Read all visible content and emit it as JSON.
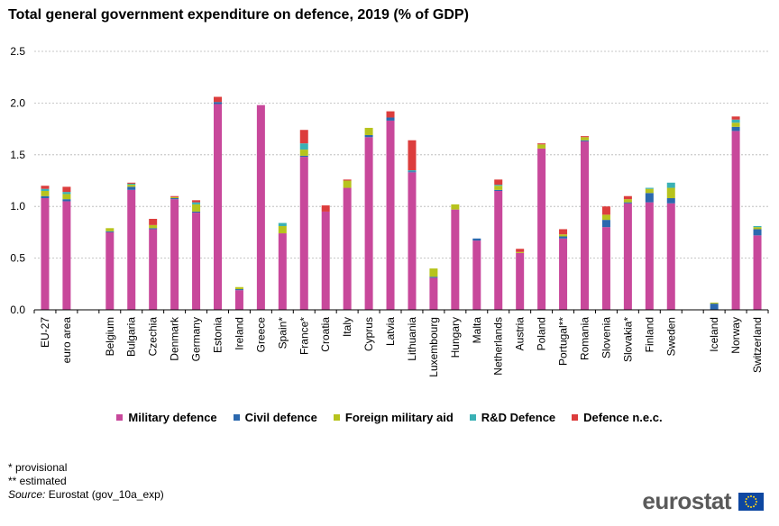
{
  "title": "Total general government expenditure on defence, 2019 (% of GDP)",
  "notes": {
    "provisional": "* provisional",
    "estimated": "** estimated",
    "source_label": "Source:",
    "source_text": "Eurostat (gov_10a_exp)"
  },
  "logo_text": "eurostat",
  "colors": {
    "military": "#c8489b",
    "civil": "#2b68ae",
    "foreign": "#b7c31d",
    "rnd": "#3ab1b5",
    "nec": "#dc3d3d",
    "grid": "#b5b5b5"
  },
  "chart_data": {
    "type": "bar",
    "stacked": true,
    "ylim": [
      0,
      2.5
    ],
    "yticks": [
      "0.0",
      "0.5",
      "1.0",
      "1.5",
      "2.0",
      "2.5"
    ],
    "grid": true,
    "legend_position": "bottom",
    "categories": [
      "EU-27",
      "euro area",
      "",
      "Belgium",
      "Bulgaria",
      "Czechia",
      "Denmark",
      "Germany",
      "Estonia",
      "Ireland",
      "Greece",
      "Spain*",
      "France*",
      "Croatia",
      "Italy",
      "Cyprus",
      "Latvia",
      "Lithuania",
      "Luxembourg",
      "Hungary",
      "Malta",
      "Netherlands",
      "Austria",
      "Poland",
      "Portugal**",
      "Romania",
      "Slovenia",
      "Slovakia*",
      "Finland",
      "Sweden",
      "",
      "Iceland",
      "Norway",
      "Switzerland"
    ],
    "series": [
      {
        "name": "Military defence",
        "color_key": "military",
        "values": [
          1.08,
          1.05,
          0,
          0.75,
          1.16,
          0.78,
          1.07,
          0.94,
          1.99,
          0.19,
          1.98,
          0.74,
          1.48,
          0.95,
          1.18,
          1.67,
          1.83,
          1.33,
          0.31,
          0.97,
          0.67,
          1.15,
          0.55,
          1.56,
          0.69,
          1.63,
          0.8,
          1.03,
          1.04,
          1.03,
          0,
          0.0,
          1.73,
          0.72
        ]
      },
      {
        "name": "Civil defence",
        "color_key": "civil",
        "values": [
          0.02,
          0.02,
          0,
          0.01,
          0.03,
          0.01,
          0.01,
          0.01,
          0.02,
          0.01,
          0.0,
          0.0,
          0.01,
          0.0,
          0.0,
          0.02,
          0.03,
          0.01,
          0.01,
          0.0,
          0.02,
          0.01,
          0.0,
          0.0,
          0.02,
          0.01,
          0.07,
          0.01,
          0.09,
          0.05,
          0,
          0.06,
          0.04,
          0.06
        ]
      },
      {
        "name": "Foreign military aid",
        "color_key": "foreign",
        "values": [
          0.05,
          0.05,
          0,
          0.03,
          0.02,
          0.03,
          0.01,
          0.07,
          0.0,
          0.02,
          0.0,
          0.07,
          0.06,
          0.0,
          0.07,
          0.07,
          0.0,
          0.0,
          0.08,
          0.05,
          0.0,
          0.04,
          0.01,
          0.04,
          0.02,
          0.03,
          0.05,
          0.03,
          0.04,
          0.1,
          0,
          0.01,
          0.04,
          0.02
        ]
      },
      {
        "name": "R&D Defence",
        "color_key": "rnd",
        "values": [
          0.02,
          0.02,
          0,
          0.0,
          0.01,
          0.0,
          0.0,
          0.02,
          0.0,
          0.0,
          0.0,
          0.03,
          0.06,
          0.0,
          0.0,
          0.0,
          0.0,
          0.01,
          0.0,
          0.0,
          0.0,
          0.01,
          0.0,
          0.0,
          0.0,
          0.0,
          0.0,
          0.0,
          0.01,
          0.05,
          0,
          0.0,
          0.03,
          0.01
        ]
      },
      {
        "name": "Defence n.e.c.",
        "color_key": "nec",
        "values": [
          0.03,
          0.05,
          0,
          0.0,
          0.01,
          0.06,
          0.01,
          0.02,
          0.05,
          0.0,
          0.0,
          0.0,
          0.13,
          0.06,
          0.01,
          0.0,
          0.06,
          0.29,
          0.0,
          0.0,
          0.0,
          0.05,
          0.03,
          0.01,
          0.05,
          0.01,
          0.08,
          0.03,
          0.0,
          0.0,
          0,
          0.0,
          0.03,
          0.0
        ]
      }
    ]
  }
}
